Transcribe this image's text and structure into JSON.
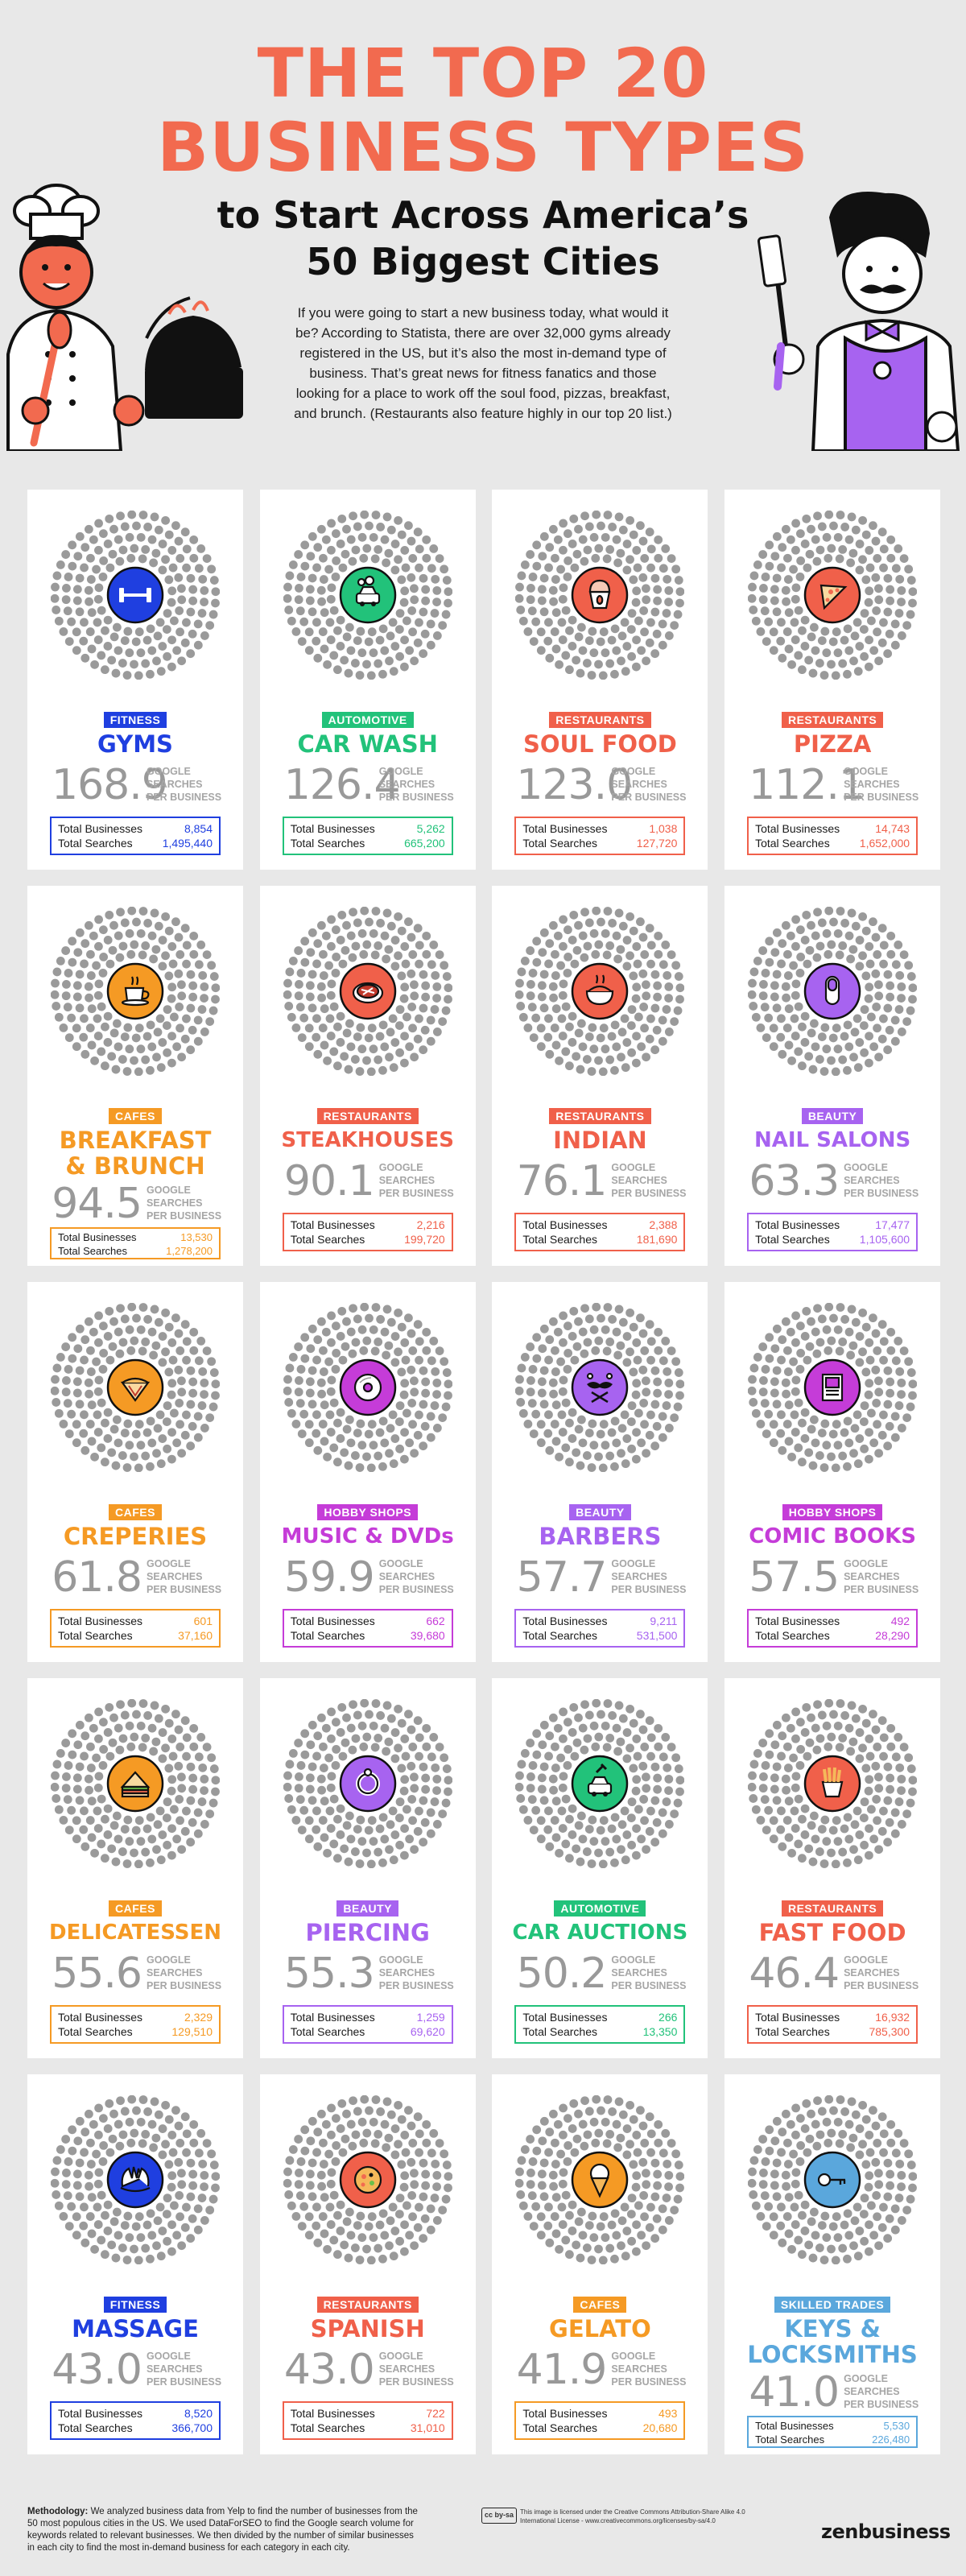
{
  "header": {
    "title_line1": "THE TOP 20",
    "title_line2": "BUSINESS TYPES",
    "subtitle_line1": "to Start Across America’s",
    "subtitle_line2": "50 Biggest Cities",
    "intro": "If you were going to start a new business today, what would it be? According to Statista, there are over 32,000 gyms already registered in the US, but it’s also the most in-demand type of business. That’s great news for fitness fanatics and those looking for a place to work off the soul food, pizzas, breakfast, and brunch. (Restaurants also feature highly in our top 20 list.)"
  },
  "colors": {
    "title": "#f26a4f",
    "fitness": "#1f3fe0",
    "automotive": "#22c27a",
    "restaurants": "#f0604a",
    "cafes": "#f59a24",
    "beauty": "#a763f0",
    "hobby_shops": "#c53cd8",
    "skilled_trades": "#5aa7dc"
  },
  "stat_caption": {
    "line1": "GOOGLE",
    "line2": "SEARCHES",
    "line3": "PER BUSINESS"
  },
  "labels": {
    "total_businesses": "Total Businesses",
    "total_searches": "Total Searches"
  },
  "cards": [
    {
      "category": "FITNESS",
      "name": "GYMS",
      "score": "168.9",
      "businesses": "8,854",
      "searches": "1,495,440",
      "color": "#1f3fe0",
      "icon": "dumbbell-icon"
    },
    {
      "category": "AUTOMOTIVE",
      "name": "CAR WASH",
      "score": "126.4",
      "businesses": "5,262",
      "searches": "665,200",
      "color": "#22c27a",
      "icon": "car-wash-icon"
    },
    {
      "category": "RESTAURANTS",
      "name": "SOUL FOOD",
      "score": "123.0",
      "businesses": "1,038",
      "searches": "127,720",
      "color": "#f0604a",
      "icon": "soul-food-icon"
    },
    {
      "category": "RESTAURANTS",
      "name": "PIZZA",
      "score": "112.1",
      "businesses": "14,743",
      "searches": "1,652,000",
      "color": "#f0604a",
      "icon": "pizza-icon"
    },
    {
      "category": "CAFES",
      "name": "BREAKFAST",
      "name2": "& BRUNCH",
      "score": "94.5",
      "businesses": "13,530",
      "searches": "1,278,200",
      "color": "#f59a24",
      "icon": "coffee-cup-icon"
    },
    {
      "category": "RESTAURANTS",
      "name": "STEAKHOUSES",
      "score": "90.1",
      "businesses": "2,216",
      "searches": "199,720",
      "color": "#f0604a",
      "icon": "steak-icon"
    },
    {
      "category": "RESTAURANTS",
      "name": "INDIAN",
      "score": "76.1",
      "businesses": "2,388",
      "searches": "181,690",
      "color": "#f0604a",
      "icon": "curry-bowl-icon"
    },
    {
      "category": "BEAUTY",
      "name": "NAIL SALONS",
      "score": "63.3",
      "businesses": "17,477",
      "searches": "1,105,600",
      "color": "#a763f0",
      "icon": "fingernail-icon"
    },
    {
      "category": "CAFES",
      "name": "CREPERIES",
      "score": "61.8",
      "businesses": "601",
      "searches": "37,160",
      "color": "#f59a24",
      "icon": "crepe-icon"
    },
    {
      "category": "HOBBY SHOPS",
      "name": "MUSIC & DVDs",
      "score": "59.9",
      "businesses": "662",
      "searches": "39,680",
      "color": "#c53cd8",
      "icon": "disc-icon"
    },
    {
      "category": "BEAUTY",
      "name": "BARBERS",
      "score": "57.7",
      "businesses": "9,211",
      "searches": "531,500",
      "color": "#a763f0",
      "icon": "scissors-mustache-icon"
    },
    {
      "category": "HOBBY SHOPS",
      "name": "COMIC BOOKS",
      "score": "57.5",
      "businesses": "492",
      "searches": "28,290",
      "color": "#c53cd8",
      "icon": "comic-book-icon"
    },
    {
      "category": "CAFES",
      "name": "DELICATESSEN",
      "score": "55.6",
      "businesses": "2,329",
      "searches": "129,510",
      "color": "#f59a24",
      "icon": "sandwich-icon"
    },
    {
      "category": "BEAUTY",
      "name": "PIERCING",
      "score": "55.3",
      "businesses": "1,259",
      "searches": "69,620",
      "color": "#a763f0",
      "icon": "ring-icon"
    },
    {
      "category": "AUTOMOTIVE",
      "name": "CAR AUCTIONS",
      "score": "50.2",
      "businesses": "266",
      "searches": "13,350",
      "color": "#22c27a",
      "icon": "auction-car-icon"
    },
    {
      "category": "RESTAURANTS",
      "name": "FAST FOOD",
      "score": "46.4",
      "businesses": "16,932",
      "searches": "785,300",
      "color": "#f0604a",
      "icon": "fries-icon"
    },
    {
      "category": "FITNESS",
      "name": "MASSAGE",
      "score": "43.0",
      "businesses": "8,520",
      "searches": "366,700",
      "color": "#1f3fe0",
      "icon": "massage-hands-icon"
    },
    {
      "category": "RESTAURANTS",
      "name": "SPANISH",
      "score": "43.0",
      "businesses": "722",
      "searches": "31,010",
      "color": "#f0604a",
      "icon": "paella-icon"
    },
    {
      "category": "CAFES",
      "name": "GELATO",
      "score": "41.9",
      "businesses": "493",
      "searches": "20,680",
      "color": "#f59a24",
      "icon": "ice-cream-cone-icon"
    },
    {
      "category": "SKILLED TRADES",
      "name": "KEYS &",
      "name2": "LOCKSMITHS",
      "score": "41.0",
      "businesses": "5,530",
      "searches": "226,480",
      "color": "#5aa7dc",
      "icon": "key-icon"
    }
  ],
  "footer": {
    "method_label": "Methodology:",
    "method_text": " We analyzed business data from Yelp to find the number of businesses from the 50 most populous cities in the US. We used DataForSEO to find the Google search volume for keywords related to relevant businesses. We then divided by the number of similar businesses in each city to find the most in-demand business for each category in each city.",
    "license_badge": "cc by-sa",
    "license_text": "This image is licensed under the Creative Commons Attribution-Share Alike 4.0 International License - www.creativecommons.org/licenses/by-sa/4.0",
    "brand": "zenbusiness"
  }
}
